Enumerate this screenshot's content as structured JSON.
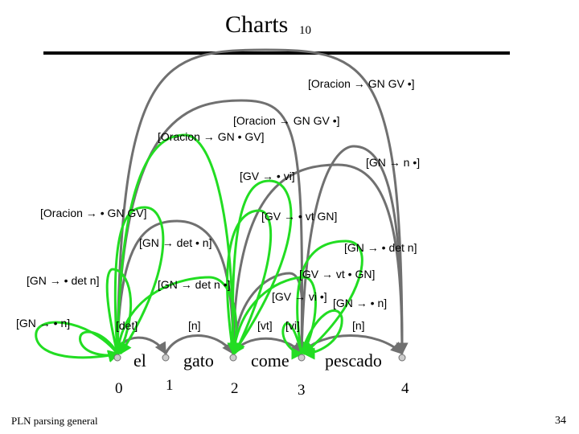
{
  "slide": {
    "title": "Charts",
    "title_number": "10",
    "footer_left": "PLN parsing general",
    "page_number": "34"
  },
  "words": [
    "el",
    "gato",
    "come",
    "pescado"
  ],
  "positions": [
    "0",
    "1",
    "2",
    "3",
    "4"
  ],
  "edges": [
    "[Oracion → GN  GV •]",
    "[Oracion → GN  GV •]",
    "[Oracion → GN • GV]",
    "[GN → n •]",
    "[GV → • vi]",
    "[Oracion → • GN GV]",
    "[GV → • vt GN]",
    "[GN → det • n]",
    "[GN → • det n]",
    "[GN → • det n]",
    "[GV → vt • GN]",
    "[GN → det n •]",
    "[GV → vi •]",
    "[GN → • n]",
    "[GN → • n]",
    "[det]",
    "[n]",
    "[vt]",
    "[vi]",
    "[n]"
  ],
  "colors": {
    "completed_edge": "#707070",
    "active_edge": "#22dd22",
    "node_fill": "#cccccc",
    "rule": "#000000"
  }
}
